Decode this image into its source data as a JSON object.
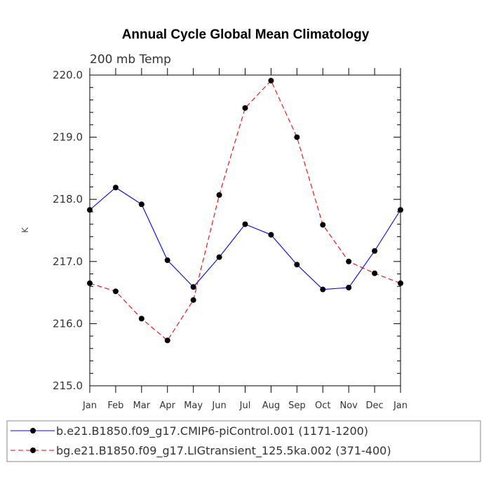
{
  "chart_data": {
    "type": "line",
    "title": "Annual Cycle Global Mean Climatology",
    "subtitle": "200 mb Temp",
    "ylabel": "K",
    "xlabel": "",
    "ylim": [
      215.0,
      220.0
    ],
    "yticks": [
      215.0,
      216.0,
      217.0,
      218.0,
      219.0,
      220.0
    ],
    "ytick_labels": [
      "215.0",
      "216.0",
      "217.0",
      "218.0",
      "219.0",
      "220.0"
    ],
    "categories": [
      "Jan",
      "Feb",
      "Mar",
      "Apr",
      "May",
      "Jun",
      "Jul",
      "Aug",
      "Sep",
      "Oct",
      "Nov",
      "Dec",
      "Jan"
    ],
    "grid": false,
    "legend_position": "bottom",
    "series": [
      {
        "name": "b.e21.B1850.f09_g17.CMIP6-piControl.001 (1171-1200)",
        "color": "#0000ff",
        "line_style": "solid",
        "marker": "dot",
        "values": [
          217.83,
          218.19,
          217.92,
          217.02,
          216.59,
          217.07,
          217.6,
          217.43,
          216.95,
          216.55,
          216.58,
          217.17,
          217.83
        ]
      },
      {
        "name": "bg.e21.B1850.f09_g17.LIGtransient_125.5ka.002 (371-400)",
        "color": "#ff0000",
        "line_style": "dashed",
        "marker": "dot",
        "values": [
          216.65,
          216.52,
          216.08,
          215.73,
          216.38,
          218.07,
          219.47,
          219.91,
          219.0,
          217.59,
          217.0,
          216.81,
          216.65
        ]
      }
    ]
  }
}
